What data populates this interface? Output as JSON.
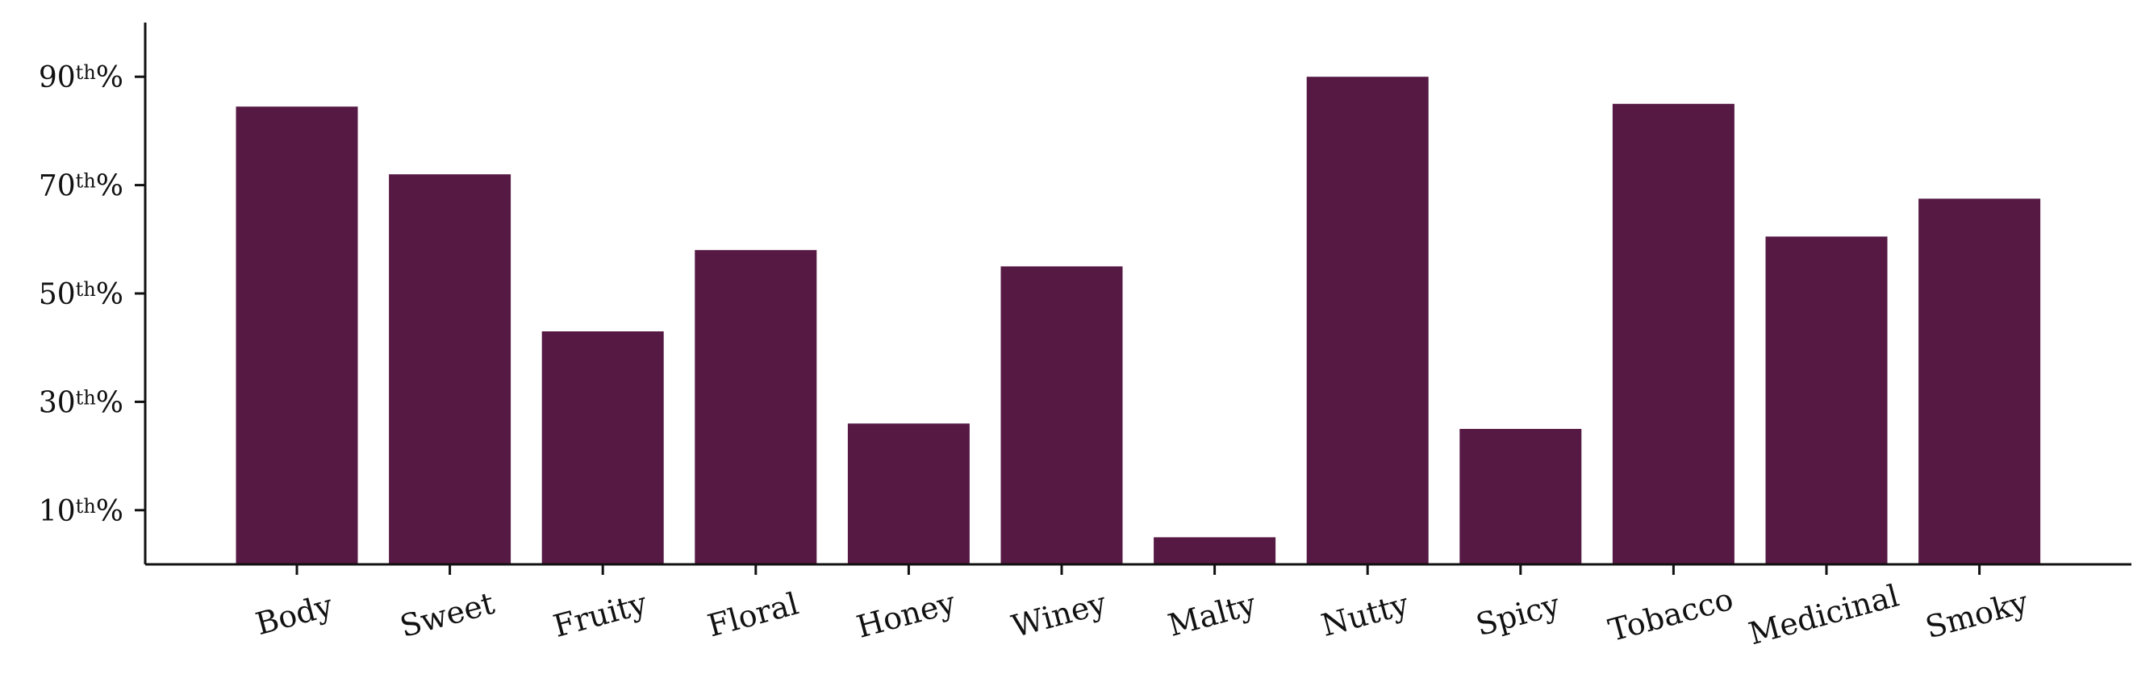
{
  "colors": {
    "bar": "#561944"
  },
  "chart_data": {
    "type": "bar",
    "title": "",
    "xlabel": "",
    "ylabel": "",
    "categories": [
      "Body",
      "Sweet",
      "Fruity",
      "Floral",
      "Honey",
      "Winey",
      "Malty",
      "Nutty",
      "Spicy",
      "Tobacco",
      "Medicinal",
      "Smoky"
    ],
    "values": [
      84.5,
      72,
      43,
      58,
      26,
      55,
      5,
      90,
      25,
      85,
      60.5,
      67.5
    ],
    "ylim": [
      0,
      100
    ],
    "y_ticks": [
      {
        "value": 10,
        "num": "10",
        "sup": "th",
        "suffix": "%"
      },
      {
        "value": 30,
        "num": "30",
        "sup": "th",
        "suffix": "%"
      },
      {
        "value": 50,
        "num": "50",
        "sup": "th",
        "suffix": "%"
      },
      {
        "value": 70,
        "num": "70",
        "sup": "th",
        "suffix": "%"
      },
      {
        "value": 90,
        "num": "90",
        "sup": "th",
        "suffix": "%"
      }
    ],
    "grid": false,
    "legend": "none"
  }
}
